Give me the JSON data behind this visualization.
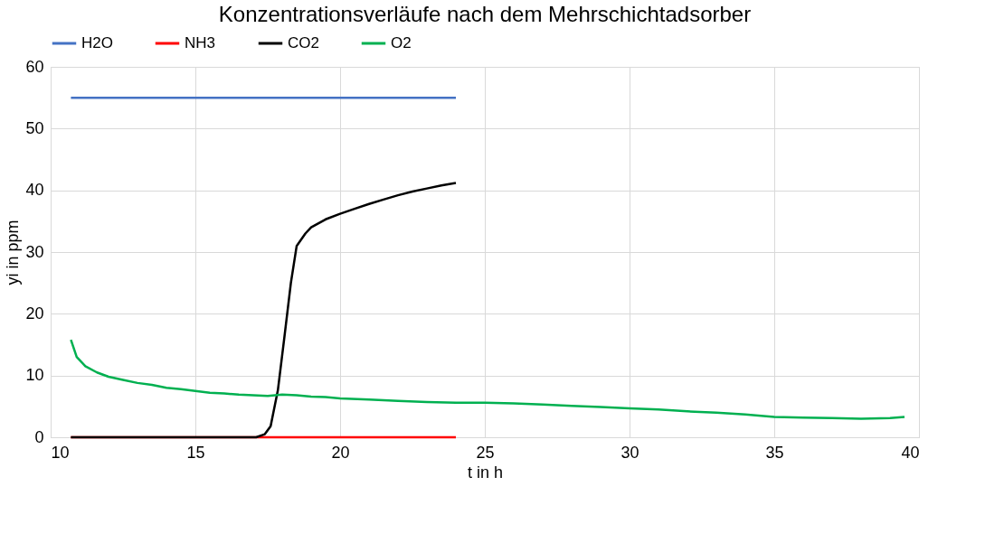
{
  "chart_data": {
    "type": "line",
    "title": "Konzentrationsverläufe nach dem Mehrschichtadsorber",
    "xlabel": "t in h",
    "ylabel": "yi in ppm",
    "xlim": [
      10,
      40
    ],
    "xticks": [
      10,
      15,
      20,
      25,
      30,
      35,
      40
    ],
    "ylim": [
      0,
      60
    ],
    "yticks": [
      0,
      10,
      20,
      30,
      40,
      50,
      60
    ],
    "grid": true,
    "legend": "top",
    "marker": "none",
    "line_style": "solid",
    "series": [
      {
        "name": "H2O",
        "color": "#4472c4",
        "x": [
          10.7,
          24
        ],
        "values": [
          55,
          55
        ]
      },
      {
        "name": "NH3",
        "color": "#ff0000",
        "x": [
          10.7,
          24
        ],
        "values": [
          0,
          0
        ]
      },
      {
        "name": "CO2",
        "color": "#000000",
        "x": [
          10.7,
          17.1,
          17.4,
          17.6,
          17.85,
          18.07,
          18.3,
          18.5,
          18.8,
          19,
          19.5,
          20,
          20.5,
          21,
          21.5,
          22,
          22.5,
          23,
          23.5,
          24
        ],
        "values": [
          0,
          0,
          0.5,
          1.8,
          7.6,
          16,
          25,
          31,
          33,
          34,
          35.3,
          36.2,
          37,
          37.8,
          38.5,
          39.2,
          39.8,
          40.3,
          40.8,
          41.2
        ]
      },
      {
        "name": "O2",
        "color": "#00b050",
        "x": [
          10.7,
          10.9,
          11.2,
          11.6,
          12,
          12.5,
          13,
          13.5,
          14,
          14.5,
          15,
          15.5,
          16,
          16.5,
          17,
          17.5,
          18,
          18.5,
          19,
          19.5,
          20,
          21,
          22,
          23,
          24,
          25,
          26,
          27,
          28,
          29,
          30,
          31,
          32,
          33,
          34,
          35,
          36,
          37,
          38,
          39,
          39.5
        ],
        "values": [
          15.8,
          13,
          11.5,
          10.5,
          9.8,
          9.3,
          8.8,
          8.5,
          8,
          7.8,
          7.5,
          7.2,
          7.1,
          6.9,
          6.8,
          6.7,
          6.9,
          6.8,
          6.6,
          6.5,
          6.3,
          6.1,
          5.9,
          5.7,
          5.6,
          5.6,
          5.5,
          5.3,
          5.1,
          4.9,
          4.7,
          4.5,
          4.2,
          4,
          3.7,
          3.3,
          3.2,
          3.1,
          3,
          3.1,
          3.3
        ]
      }
    ]
  }
}
